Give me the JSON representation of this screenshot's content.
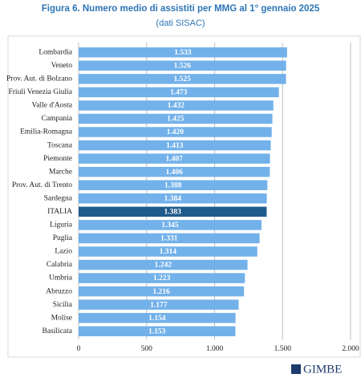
{
  "chart_data": {
    "type": "barh",
    "title": "Figura 6. Numero medio di assistiti per MMG al 1° gennaio 2025",
    "subtitle": "(dati SISAC)",
    "categories": [
      "Lombardia",
      "Veneto",
      "Prov. Aut. di Bolzano",
      "Friuli Venezia Giulia",
      "Valle d'Aosta",
      "Campania",
      "Emilia-Romagna",
      "Toscana",
      "Piemonte",
      "Marche",
      "Prov. Aut. di Trento",
      "Sardegna",
      "ITALIA",
      "Liguria",
      "Puglia",
      "Lazio",
      "Calabria",
      "Umbria",
      "Abruzzo",
      "Sicilia",
      "Molise",
      "Basilicata"
    ],
    "values": [
      1533,
      1526,
      1525,
      1473,
      1432,
      1425,
      1420,
      1413,
      1407,
      1406,
      1388,
      1384,
      1383,
      1345,
      1331,
      1314,
      1242,
      1223,
      1216,
      1177,
      1154,
      1153
    ],
    "value_labels": [
      "1.533",
      "1.526",
      "1.525",
      "1.473",
      "1.432",
      "1.425",
      "1.420",
      "1.413",
      "1.407",
      "1.406",
      "1.388",
      "1.384",
      "1.383",
      "1.345",
      "1.331",
      "1.314",
      "1.242",
      "1.223",
      "1.216",
      "1.177",
      "1.154",
      "1.153"
    ],
    "colors": [
      "#72b1ea",
      "#72b1ea",
      "#72b1ea",
      "#72b1ea",
      "#72b1ea",
      "#72b1ea",
      "#72b1ea",
      "#72b1ea",
      "#72b1ea",
      "#72b1ea",
      "#72b1ea",
      "#72b1ea",
      "#1f5a8c",
      "#72b1ea",
      "#72b1ea",
      "#72b1ea",
      "#72b1ea",
      "#72b1ea",
      "#72b1ea",
      "#72b1ea",
      "#72b1ea",
      "#72b1ea"
    ],
    "xlim": [
      0,
      2000
    ],
    "xticks": [
      0,
      500,
      {
        "value": 1000,
        "label": "1.000"
      },
      {
        "value": 1500,
        "label": "1.500"
      },
      {
        "value": 2000,
        "label": "2.000"
      }
    ],
    "grid": true,
    "logo": "GIMBE"
  }
}
